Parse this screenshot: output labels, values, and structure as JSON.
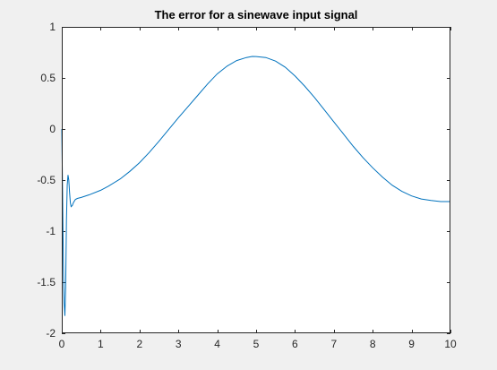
{
  "chart_data": {
    "type": "line",
    "title": "The error for a sinewave input signal",
    "xlabel": "",
    "ylabel": "",
    "xlim": [
      0,
      10
    ],
    "ylim": [
      -2,
      1
    ],
    "grid": false,
    "xticks": [
      0,
      1,
      2,
      3,
      4,
      5,
      6,
      7,
      8,
      9,
      10
    ],
    "yticks": [
      -2,
      -1.5,
      -1,
      -0.5,
      0,
      0.5,
      1
    ],
    "xtick_labels": [
      "0",
      "1",
      "2",
      "3",
      "4",
      "5",
      "6",
      "7",
      "8",
      "9",
      "10"
    ],
    "ytick_labels": [
      "-2",
      "-1.5",
      "-1",
      "-0.5",
      "0",
      "0.5",
      "1"
    ],
    "series": [
      {
        "color": "#0072bd",
        "points": [
          [
            0,
            0.0
          ],
          [
            0.02,
            -0.6
          ],
          [
            0.04,
            -1.3
          ],
          [
            0.06,
            -1.7
          ],
          [
            0.08,
            -1.83
          ],
          [
            0.1,
            -1.55
          ],
          [
            0.12,
            -0.9
          ],
          [
            0.14,
            -0.55
          ],
          [
            0.16,
            -0.45
          ],
          [
            0.18,
            -0.5
          ],
          [
            0.2,
            -0.62
          ],
          [
            0.22,
            -0.72
          ],
          [
            0.24,
            -0.76
          ],
          [
            0.27,
            -0.75
          ],
          [
            0.3,
            -0.72
          ],
          [
            0.35,
            -0.69
          ],
          [
            0.4,
            -0.68
          ],
          [
            0.5,
            -0.67
          ],
          [
            0.7,
            -0.645
          ],
          [
            1.0,
            -0.6
          ],
          [
            1.2,
            -0.56
          ],
          [
            1.5,
            -0.49
          ],
          [
            1.75,
            -0.415
          ],
          [
            2.0,
            -0.33
          ],
          [
            2.25,
            -0.23
          ],
          [
            2.5,
            -0.12
          ],
          [
            2.75,
            -0.005
          ],
          [
            3.0,
            0.11
          ],
          [
            3.25,
            0.22
          ],
          [
            3.5,
            0.33
          ],
          [
            3.75,
            0.44
          ],
          [
            4.0,
            0.54
          ],
          [
            4.25,
            0.615
          ],
          [
            4.5,
            0.67
          ],
          [
            4.75,
            0.7
          ],
          [
            4.9,
            0.71
          ],
          [
            5.0,
            0.709
          ],
          [
            5.25,
            0.7
          ],
          [
            5.5,
            0.665
          ],
          [
            5.75,
            0.605
          ],
          [
            6.0,
            0.52
          ],
          [
            6.25,
            0.42
          ],
          [
            6.5,
            0.31
          ],
          [
            6.75,
            0.19
          ],
          [
            7.0,
            0.07
          ],
          [
            7.25,
            -0.05
          ],
          [
            7.5,
            -0.17
          ],
          [
            7.75,
            -0.28
          ],
          [
            8.0,
            -0.38
          ],
          [
            8.25,
            -0.47
          ],
          [
            8.5,
            -0.55
          ],
          [
            8.75,
            -0.61
          ],
          [
            9.0,
            -0.655
          ],
          [
            9.25,
            -0.685
          ],
          [
            9.5,
            -0.7
          ],
          [
            9.75,
            -0.71
          ],
          [
            10.0,
            -0.71
          ]
        ]
      }
    ]
  }
}
